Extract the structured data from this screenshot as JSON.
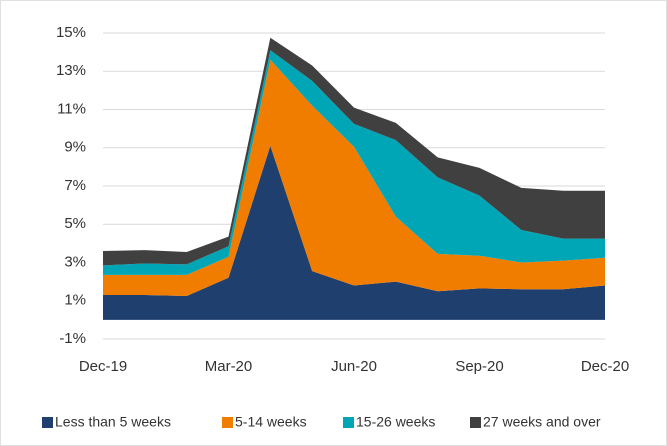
{
  "chart_data": {
    "type": "stacked_area",
    "categories": [
      "Dec-19",
      null,
      null,
      "Mar-20",
      null,
      null,
      "Jun-20",
      null,
      null,
      "Sep-20",
      null,
      null,
      "Dec-20"
    ],
    "series": [
      {
        "name": "Less than 5 weeks",
        "color": "#1f3f6e",
        "values": [
          1.3,
          1.3,
          1.25,
          2.2,
          9.1,
          2.55,
          1.8,
          2.0,
          1.5,
          1.65,
          1.6,
          1.6,
          1.8
        ]
      },
      {
        "name": "5-14 weeks",
        "color": "#f07c00",
        "values": [
          1.05,
          1.05,
          1.1,
          1.1,
          4.5,
          8.65,
          7.25,
          3.4,
          1.95,
          1.7,
          1.4,
          1.5,
          1.45
        ]
      },
      {
        "name": "15-26 weeks",
        "color": "#00a6b5",
        "values": [
          0.5,
          0.6,
          0.55,
          0.55,
          0.5,
          1.3,
          1.2,
          4.0,
          4.0,
          3.15,
          1.7,
          1.15,
          1.0
        ]
      },
      {
        "name": "27 weeks and over",
        "color": "#404040",
        "values": [
          0.75,
          0.7,
          0.65,
          0.5,
          0.65,
          0.8,
          0.85,
          0.9,
          1.05,
          1.45,
          2.2,
          2.5,
          2.5
        ]
      }
    ],
    "ylim": [
      -1,
      15
    ],
    "yticks": [
      {
        "value": -1,
        "label": "-1%"
      },
      {
        "value": 1,
        "label": "1%"
      },
      {
        "value": 3,
        "label": "3%"
      },
      {
        "value": 5,
        "label": "5%"
      },
      {
        "value": 7,
        "label": "7%"
      },
      {
        "value": 9,
        "label": "9%"
      },
      {
        "value": 11,
        "label": "11%"
      },
      {
        "value": 13,
        "label": "13%"
      },
      {
        "value": 15,
        "label": "15%"
      }
    ],
    "grid": true,
    "legend": "bottom"
  }
}
